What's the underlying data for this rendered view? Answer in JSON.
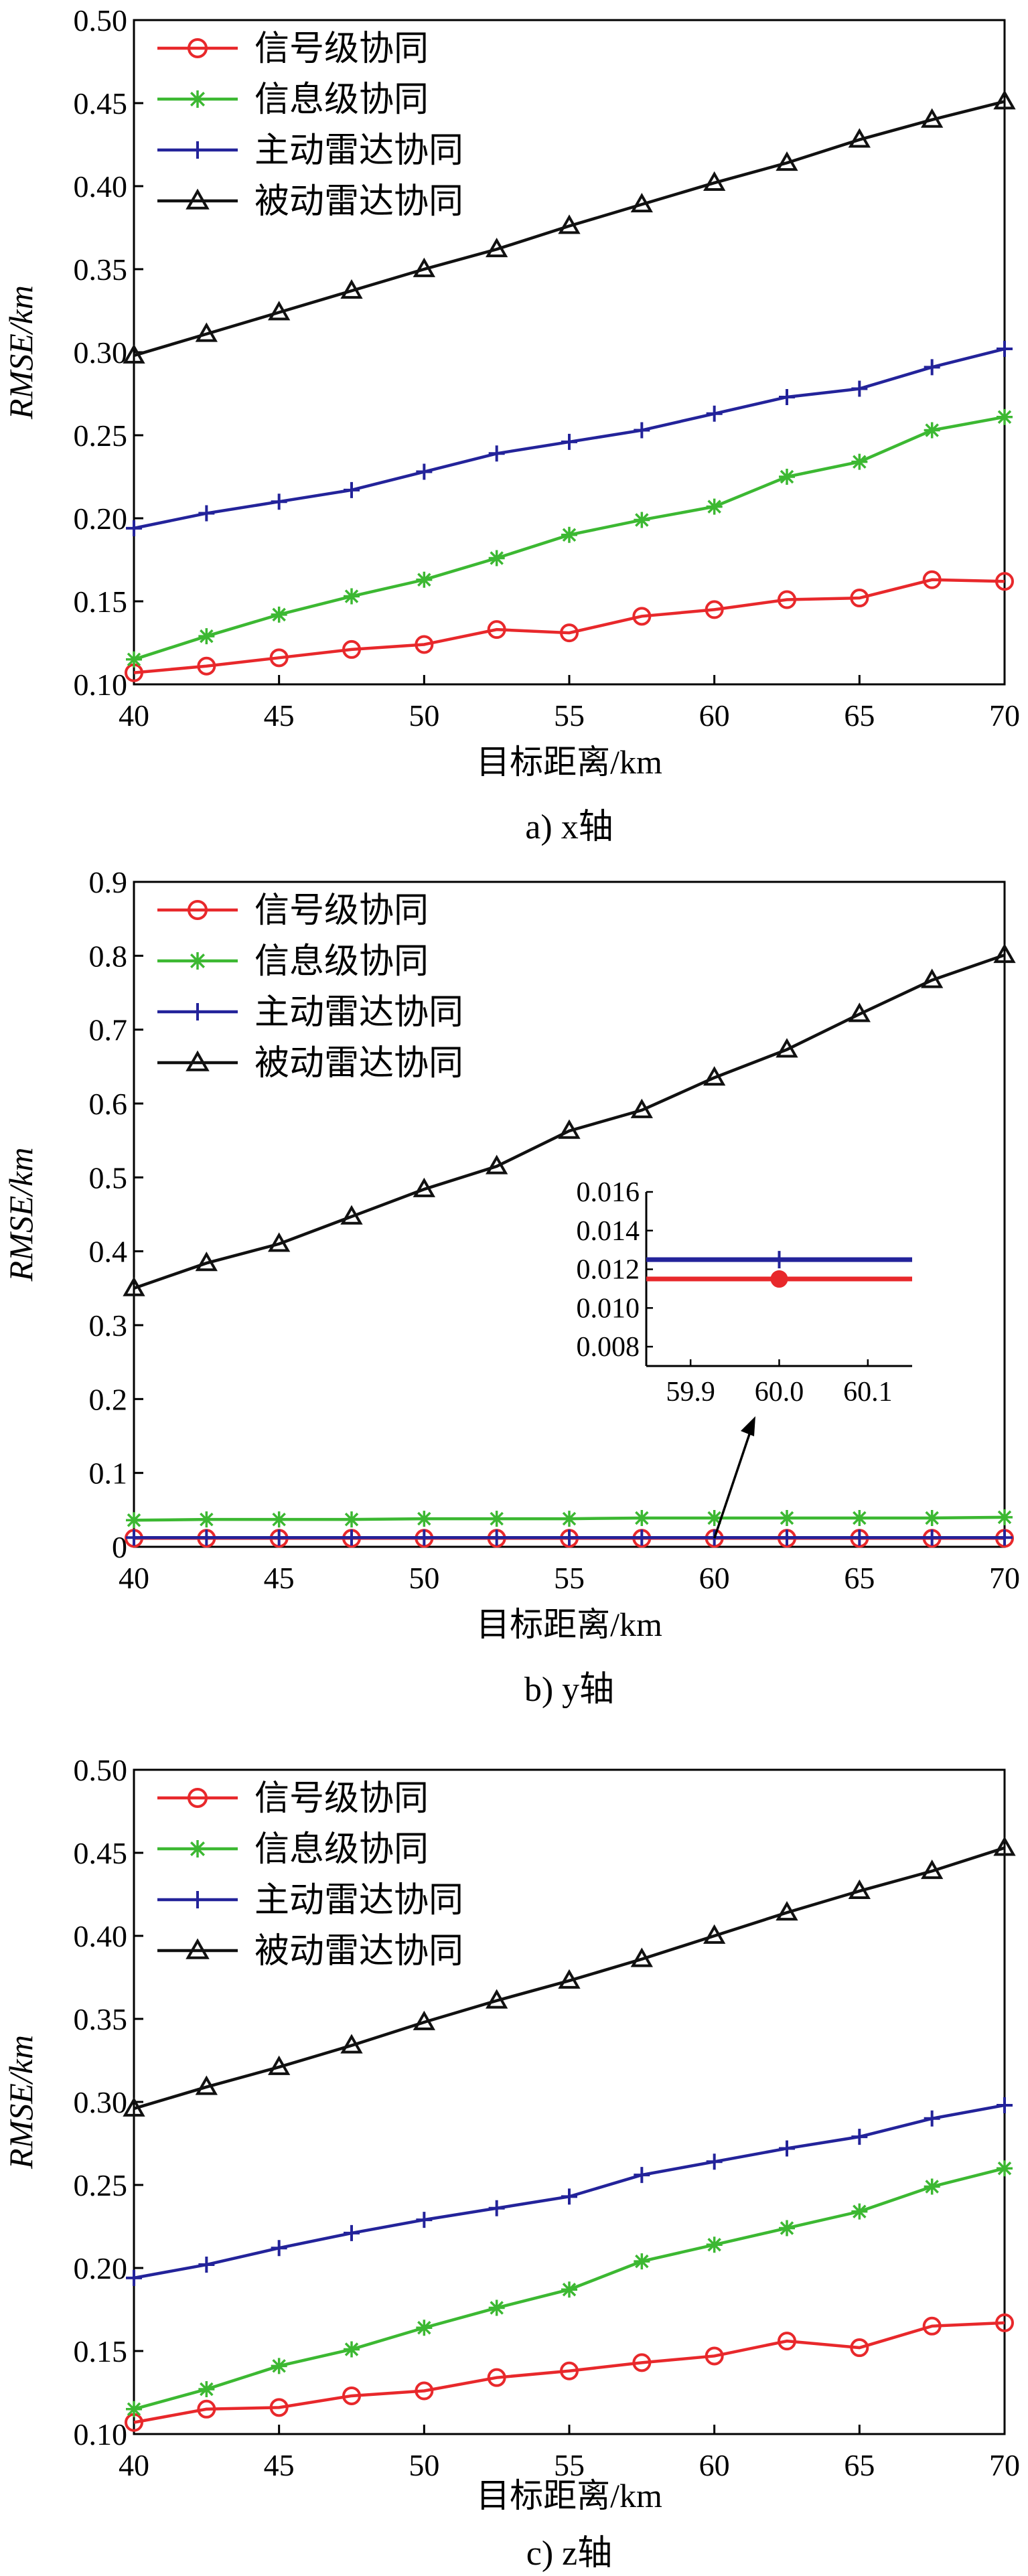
{
  "figure": {
    "captions": [
      "a) x轴",
      "b) y轴",
      "c) z轴"
    ]
  },
  "chart_data": [
    {
      "type": "line",
      "caption": "a) x轴",
      "xlabel": "目标距离/km",
      "ylabel": "RMSE/km",
      "xlim": [
        40,
        70
      ],
      "ylim": [
        0.1,
        0.5
      ],
      "xticks": [
        "40",
        "45",
        "50",
        "55",
        "60",
        "65",
        "70"
      ],
      "yticks": [
        "0.10",
        "0.15",
        "0.20",
        "0.25",
        "0.30",
        "0.35",
        "0.40",
        "0.45",
        "0.50"
      ],
      "legend_position": "top-left",
      "x": [
        40,
        42.5,
        45,
        47.5,
        50,
        52.5,
        55,
        57.5,
        60,
        62.5,
        65,
        67.5,
        70
      ],
      "series": [
        {
          "name": "信号级协同",
          "color": "#e8282b",
          "marker": "circle",
          "values": [
            0.107,
            0.111,
            0.116,
            0.121,
            0.124,
            0.133,
            0.131,
            0.141,
            0.145,
            0.151,
            0.152,
            0.163,
            0.162
          ]
        },
        {
          "name": "信息级协同",
          "color": "#3cb832",
          "marker": "star",
          "values": [
            0.115,
            0.129,
            0.142,
            0.153,
            0.163,
            0.176,
            0.19,
            0.199,
            0.207,
            0.225,
            0.234,
            0.253,
            0.261
          ]
        },
        {
          "name": "主动雷达协同",
          "color": "#23239a",
          "marker": "plus",
          "values": [
            0.194,
            0.203,
            0.21,
            0.217,
            0.228,
            0.239,
            0.246,
            0.253,
            0.263,
            0.273,
            0.278,
            0.291,
            0.302
          ]
        },
        {
          "name": "被动雷达协同",
          "color": "#111111",
          "marker": "triangle",
          "values": [
            0.298,
            0.311,
            0.324,
            0.337,
            0.35,
            0.362,
            0.376,
            0.389,
            0.402,
            0.414,
            0.428,
            0.44,
            0.451
          ]
        }
      ]
    },
    {
      "type": "line",
      "caption": "b) y轴",
      "xlabel": "目标距离/km",
      "ylabel": "RMSE/km",
      "xlim": [
        40,
        70
      ],
      "ylim": [
        0,
        0.9
      ],
      "xticks": [
        "40",
        "45",
        "50",
        "55",
        "60",
        "65",
        "70"
      ],
      "yticks": [
        "0",
        "0.1",
        "0.2",
        "0.3",
        "0.4",
        "0.5",
        "0.6",
        "0.7",
        "0.8",
        "0.9"
      ],
      "legend_position": "top-left",
      "x": [
        40,
        42.5,
        45,
        47.5,
        50,
        52.5,
        55,
        57.5,
        60,
        62.5,
        65,
        67.5,
        70
      ],
      "series": [
        {
          "name": "信号级协同",
          "color": "#e8282b",
          "marker": "circle",
          "values": [
            0.0115,
            0.0115,
            0.0115,
            0.0115,
            0.0115,
            0.0115,
            0.0115,
            0.0115,
            0.0115,
            0.0115,
            0.0115,
            0.0115,
            0.0115
          ]
        },
        {
          "name": "信息级协同",
          "color": "#3cb832",
          "marker": "star",
          "values": [
            0.036,
            0.037,
            0.037,
            0.037,
            0.038,
            0.038,
            0.038,
            0.039,
            0.039,
            0.039,
            0.039,
            0.039,
            0.04
          ]
        },
        {
          "name": "主动雷达协同",
          "color": "#23239a",
          "marker": "plus",
          "values": [
            0.0125,
            0.0125,
            0.0125,
            0.0125,
            0.0125,
            0.0125,
            0.0125,
            0.0125,
            0.0125,
            0.0125,
            0.0125,
            0.0125,
            0.0125
          ]
        },
        {
          "name": "被动雷达协同",
          "color": "#111111",
          "marker": "triangle",
          "values": [
            0.35,
            0.384,
            0.41,
            0.447,
            0.484,
            0.515,
            0.563,
            0.591,
            0.635,
            0.673,
            0.721,
            0.767,
            0.801
          ]
        }
      ],
      "inset": {
        "xlim": [
          59.85,
          60.15
        ],
        "ylim": [
          0.007,
          0.016
        ],
        "xticks": [
          "59.9",
          "60.0",
          "60.1"
        ],
        "yticks": [
          "0.008",
          "0.010",
          "0.012",
          "0.014",
          "0.016"
        ],
        "x": [
          60.0
        ],
        "series": [
          {
            "name": "信号级协同",
            "color": "#e8282b",
            "marker": "circle",
            "values": [
              0.0115
            ]
          },
          {
            "name": "主动雷达协同",
            "color": "#23239a",
            "marker": "plus",
            "values": [
              0.0125
            ]
          }
        ],
        "arrow_target": [
          60.0,
          0.0115
        ]
      }
    },
    {
      "type": "line",
      "caption": "c) z轴",
      "xlabel": "目标距离/km",
      "ylabel": "RMSE/km",
      "xlim": [
        40,
        70
      ],
      "ylim": [
        0.1,
        0.5
      ],
      "xticks": [
        "40",
        "45",
        "50",
        "55",
        "60",
        "65",
        "70"
      ],
      "yticks": [
        "0.10",
        "0.15",
        "0.20",
        "0.25",
        "0.30",
        "0.35",
        "0.40",
        "0.45",
        "0.50"
      ],
      "legend_position": "top-left",
      "x": [
        40,
        42.5,
        45,
        47.5,
        50,
        52.5,
        55,
        57.5,
        60,
        62.5,
        65,
        67.5,
        70
      ],
      "series": [
        {
          "name": "信号级协同",
          "color": "#e8282b",
          "marker": "circle",
          "values": [
            0.107,
            0.115,
            0.116,
            0.123,
            0.126,
            0.134,
            0.138,
            0.143,
            0.147,
            0.156,
            0.152,
            0.165,
            0.167
          ]
        },
        {
          "name": "信息级协同",
          "color": "#3cb832",
          "marker": "star",
          "values": [
            0.115,
            0.127,
            0.141,
            0.151,
            0.164,
            0.176,
            0.187,
            0.204,
            0.214,
            0.224,
            0.234,
            0.249,
            0.26
          ]
        },
        {
          "name": "主动雷达协同",
          "color": "#23239a",
          "marker": "plus",
          "values": [
            0.194,
            0.202,
            0.212,
            0.221,
            0.229,
            0.236,
            0.243,
            0.256,
            0.264,
            0.272,
            0.279,
            0.29,
            0.298
          ]
        },
        {
          "name": "被动雷达协同",
          "color": "#111111",
          "marker": "triangle",
          "values": [
            0.296,
            0.309,
            0.321,
            0.334,
            0.348,
            0.361,
            0.373,
            0.386,
            0.4,
            0.414,
            0.427,
            0.439,
            0.453
          ]
        }
      ]
    }
  ]
}
